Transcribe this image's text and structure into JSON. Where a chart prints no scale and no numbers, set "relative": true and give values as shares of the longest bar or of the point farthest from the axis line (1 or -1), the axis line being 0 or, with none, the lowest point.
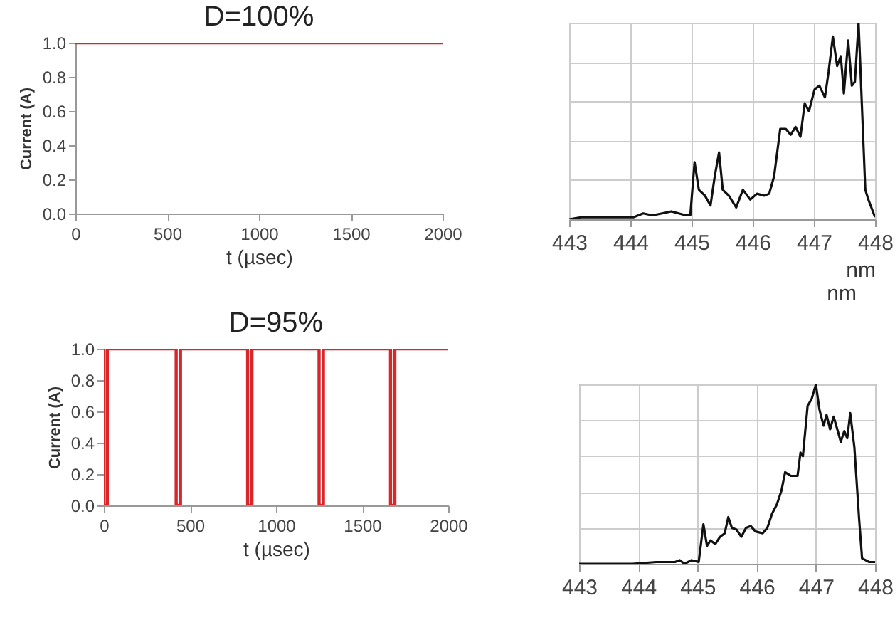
{
  "chart_data": [
    {
      "type": "line",
      "title": "D=100%",
      "xlabel": "t (µsec)",
      "ylabel": "Current (A)",
      "xlim": [
        0,
        2000
      ],
      "xticks": [
        0,
        500,
        1000,
        1500,
        2000
      ],
      "ylim": [
        0,
        1
      ],
      "yticks": [
        {
          "value": 0,
          "label": "0.0"
        },
        {
          "value": 0.2,
          "label": "0.2"
        },
        {
          "value": 0.4,
          "label": "0.4"
        },
        {
          "value": 0.6,
          "label": "0.6"
        },
        {
          "value": 0.8,
          "label": "0.8"
        },
        {
          "value": 1,
          "label": "1.0"
        }
      ],
      "grid": false,
      "series": [
        {
          "color": "#d9262b",
          "x": [
            0,
            2000
          ],
          "values": [
            1,
            1
          ]
        }
      ]
    },
    {
      "type": "line",
      "relative": true,
      "xlabel": "nm",
      "annotations": [
        "nm"
      ],
      "xlim": [
        443,
        448
      ],
      "xticks": [
        443,
        444,
        445,
        446,
        447,
        448
      ],
      "grid": true,
      "series": [
        {
          "color": "#111111",
          "x": [
            443.0,
            443.19,
            443.51,
            443.82,
            444.05,
            444.21,
            444.36,
            444.52,
            444.67,
            444.79,
            444.91,
            444.98,
            445.05,
            445.12,
            445.22,
            445.31,
            445.38,
            445.45,
            445.51,
            445.61,
            445.73,
            445.84,
            445.96,
            446.07,
            446.19,
            446.27,
            446.35,
            446.45,
            446.54,
            446.62,
            446.7,
            446.78,
            446.85,
            446.92,
            447.01,
            447.09,
            447.18,
            447.24,
            447.31,
            447.38,
            447.44,
            447.49,
            447.56,
            447.62,
            447.67,
            447.73,
            447.84,
            447.89,
            448.0
          ],
          "values": [
            0,
            0.01,
            0.01,
            0.01,
            0.01,
            0.03,
            0.02,
            0.03,
            0.04,
            0.03,
            0.02,
            0.02,
            0.29,
            0.15,
            0.12,
            0.07,
            0.22,
            0.34,
            0.15,
            0.12,
            0.06,
            0.15,
            0.1,
            0.13,
            0.12,
            0.13,
            0.22,
            0.46,
            0.46,
            0.43,
            0.47,
            0.42,
            0.59,
            0.55,
            0.66,
            0.68,
            0.62,
            0.75,
            0.93,
            0.78,
            0.83,
            0.64,
            0.91,
            0.68,
            0.7,
            1.0,
            0.15,
            0.1,
            0.01
          ]
        }
      ]
    },
    {
      "type": "line",
      "title": "D=95%",
      "xlabel": "t (µsec)",
      "ylabel": "Current (A)",
      "xlim": [
        0,
        2000
      ],
      "xticks": [
        0,
        500,
        1000,
        1500,
        2000
      ],
      "ylim": [
        0,
        1
      ],
      "yticks": [
        {
          "value": 0,
          "label": "0.0"
        },
        {
          "value": 0.2,
          "label": "0.2"
        },
        {
          "value": 0.4,
          "label": "0.4"
        },
        {
          "value": 0.6,
          "label": "0.6"
        },
        {
          "value": 0.8,
          "label": "0.8"
        },
        {
          "value": 1,
          "label": "1.0"
        }
      ],
      "grid": false,
      "series": [
        {
          "color": "#d9262b",
          "x": [
            0,
            0,
            20,
            20,
            420,
            420,
            445,
            445,
            835,
            835,
            860,
            860,
            1250,
            1250,
            1275,
            1275,
            1665,
            1665,
            1690,
            1690,
            2000
          ],
          "values": [
            1,
            0,
            0,
            1,
            1,
            0,
            0,
            1,
            1,
            0,
            0,
            1,
            1,
            0,
            0,
            1,
            1,
            0,
            0,
            1,
            1
          ]
        }
      ]
    },
    {
      "type": "line",
      "relative": true,
      "xlim": [
        443,
        448
      ],
      "xticks": [
        443,
        444,
        445,
        446,
        447,
        448
      ],
      "grid": true,
      "series": [
        {
          "color": "#111111",
          "x": [
            443.0,
            443.5,
            443.9,
            444.3,
            444.62,
            444.7,
            444.78,
            444.9,
            445.02,
            445.1,
            445.16,
            445.22,
            445.3,
            445.38,
            445.46,
            445.52,
            445.58,
            445.66,
            445.74,
            445.82,
            445.9,
            445.98,
            446.1,
            446.18,
            446.26,
            446.34,
            446.42,
            446.48,
            446.58,
            446.69,
            446.74,
            446.78,
            446.86,
            446.93,
            447.0,
            447.06,
            447.13,
            447.18,
            447.24,
            447.3,
            447.37,
            447.42,
            447.48,
            447.53,
            447.58,
            447.65,
            447.73,
            447.78,
            447.9,
            448.0
          ],
          "values": [
            0,
            0,
            0,
            0.01,
            0.01,
            0.02,
            0,
            0.02,
            0.01,
            0.22,
            0.1,
            0.13,
            0.11,
            0.15,
            0.17,
            0.26,
            0.2,
            0.19,
            0.15,
            0.2,
            0.21,
            0.18,
            0.17,
            0.2,
            0.28,
            0.33,
            0.41,
            0.51,
            0.49,
            0.49,
            0.62,
            0.6,
            0.88,
            0.92,
            1.0,
            0.86,
            0.77,
            0.83,
            0.75,
            0.82,
            0.74,
            0.68,
            0.74,
            0.7,
            0.84,
            0.65,
            0.25,
            0.03,
            0.01,
            0.01
          ]
        }
      ]
    }
  ]
}
